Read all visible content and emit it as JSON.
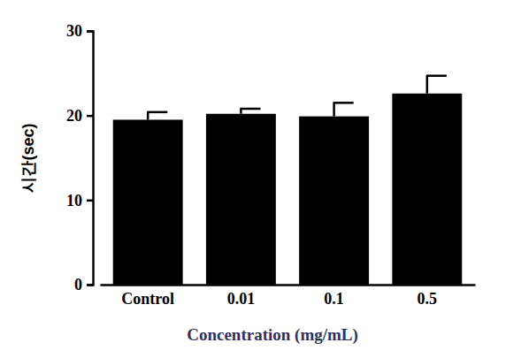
{
  "chart_data": {
    "type": "bar",
    "categories": [
      "Control",
      "0.01",
      "0.1",
      "0.5"
    ],
    "values": [
      19.5,
      20.2,
      19.9,
      22.6
    ],
    "errors": [
      0.9,
      0.6,
      1.6,
      2.1
    ],
    "color": "#000000",
    "ylim": [
      0,
      30
    ],
    "yticks": [
      0,
      10,
      20,
      30
    ],
    "y_label": "시간(sec)",
    "x_label": "Concentration (mg/mL)",
    "grid": false
  }
}
